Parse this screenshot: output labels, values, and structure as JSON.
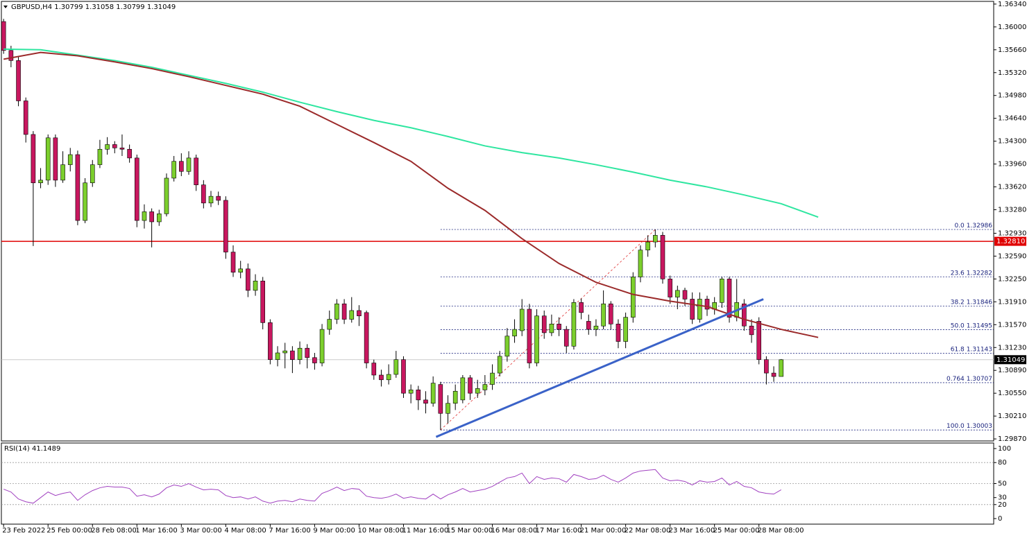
{
  "chart_data": [
    {
      "type": "candlestick",
      "title": "GBPUSD,H4  1.30799 1.31058 1.30799 1.31049",
      "open": [
        1.3608,
        1.3565,
        1.355,
        1.349,
        1.344,
        1.3368,
        1.3372,
        1.3435,
        1.3372,
        1.3395,
        1.341,
        1.3312,
        1.3368,
        1.3395,
        1.3418,
        1.3425,
        1.342,
        1.3418,
        1.3405,
        1.3312,
        1.3325,
        1.331,
        1.3322,
        1.3375,
        1.34,
        1.3385,
        1.3405,
        1.3365,
        1.3338,
        1.3348,
        1.3342,
        1.3265,
        1.3235,
        1.324,
        1.3208,
        1.3222,
        1.316,
        1.3105,
        1.3115,
        1.3118,
        1.3105,
        1.3122,
        1.3108,
        1.31,
        1.315,
        1.3165,
        1.3188,
        1.3165,
        1.3178,
        1.3175,
        1.31,
        1.3082,
        1.3075,
        1.3083,
        1.3105,
        1.3055,
        1.306,
        1.3045,
        1.304,
        1.3068,
        1.3025,
        1.304,
        1.3045,
        1.3078,
        1.3055,
        1.306,
        1.3068,
        1.3085,
        1.311,
        1.314,
        1.3148,
        1.318,
        1.31,
        1.317,
        1.3145,
        1.3158,
        1.315,
        1.3125,
        1.319,
        1.3162,
        1.315,
        1.3155,
        1.3188,
        1.3158,
        1.3132,
        1.3168,
        1.3228,
        1.3268,
        1.328,
        1.329,
        1.3225,
        1.3198,
        1.3208,
        1.3195,
        1.3165,
        1.3195,
        1.318,
        1.319,
        1.3225,
        1.3168,
        1.3188,
        1.3155,
        1.3162,
        1.3105,
        1.3085,
        1.30799
      ],
      "high": [
        1.3612,
        1.3572,
        1.3556,
        1.3495,
        1.3445,
        1.339,
        1.344,
        1.344,
        1.3415,
        1.342,
        1.3416,
        1.3375,
        1.3402,
        1.3432,
        1.3436,
        1.343,
        1.344,
        1.3425,
        1.341,
        1.3336,
        1.333,
        1.3328,
        1.3382,
        1.3408,
        1.3412,
        1.3415,
        1.341,
        1.3372,
        1.3356,
        1.3355,
        1.3348,
        1.3275,
        1.3252,
        1.3248,
        1.3232,
        1.3228,
        1.3165,
        1.3125,
        1.313,
        1.3125,
        1.3132,
        1.3128,
        1.3115,
        1.3158,
        1.3178,
        1.3195,
        1.3195,
        1.3198,
        1.3186,
        1.3178,
        1.3105,
        1.309,
        1.3098,
        1.3118,
        1.311,
        1.3068,
        1.3066,
        1.3058,
        1.308,
        1.3072,
        1.3052,
        1.3068,
        1.3082,
        1.3082,
        1.3075,
        1.3082,
        1.3098,
        1.3118,
        1.3152,
        1.3165,
        1.3195,
        1.3188,
        1.318,
        1.3178,
        1.3172,
        1.3168,
        1.3155,
        1.3195,
        1.3196,
        1.3172,
        1.3165,
        1.3208,
        1.3192,
        1.3165,
        1.3175,
        1.3235,
        1.3275,
        1.329,
        1.32986,
        1.3295,
        1.323,
        1.3215,
        1.3212,
        1.3205,
        1.3205,
        1.32,
        1.3198,
        1.3228,
        1.3228,
        1.3225,
        1.3195,
        1.3165,
        1.3168,
        1.311,
        1.3095,
        1.31058
      ],
      "low": [
        1.356,
        1.354,
        1.3482,
        1.3428,
        1.3274,
        1.336,
        1.3365,
        1.3362,
        1.3368,
        1.3385,
        1.3305,
        1.3308,
        1.3362,
        1.339,
        1.341,
        1.3412,
        1.3408,
        1.3398,
        1.3302,
        1.33,
        1.3272,
        1.3304,
        1.3318,
        1.337,
        1.3378,
        1.338,
        1.3356,
        1.333,
        1.3332,
        1.3335,
        1.3255,
        1.3228,
        1.3226,
        1.3198,
        1.32,
        1.315,
        1.3098,
        1.3095,
        1.3092,
        1.3085,
        1.3098,
        1.3092,
        1.309,
        1.3095,
        1.3142,
        1.3158,
        1.3158,
        1.316,
        1.3155,
        1.3092,
        1.3075,
        1.3065,
        1.3068,
        1.3078,
        1.3048,
        1.304,
        1.303,
        1.3025,
        1.3035,
        1.30003,
        1.301,
        1.303,
        1.304,
        1.3045,
        1.3048,
        1.3052,
        1.306,
        1.308,
        1.3102,
        1.313,
        1.314,
        1.3092,
        1.3095,
        1.3136,
        1.314,
        1.314,
        1.3115,
        1.312,
        1.3165,
        1.3142,
        1.314,
        1.315,
        1.315,
        1.3122,
        1.3122,
        1.316,
        1.322,
        1.3258,
        1.3272,
        1.3218,
        1.3188,
        1.318,
        1.3185,
        1.3158,
        1.316,
        1.317,
        1.3172,
        1.3182,
        1.316,
        1.3162,
        1.3148,
        1.313,
        1.3098,
        1.3068,
        1.3072,
        1.30799
      ],
      "close": [
        1.3565,
        1.355,
        1.349,
        1.344,
        1.3368,
        1.3372,
        1.3435,
        1.3372,
        1.3395,
        1.341,
        1.3312,
        1.3368,
        1.3395,
        1.3418,
        1.3425,
        1.342,
        1.3418,
        1.3405,
        1.3312,
        1.3325,
        1.331,
        1.3322,
        1.3375,
        1.34,
        1.3385,
        1.3405,
        1.3365,
        1.3338,
        1.3348,
        1.3342,
        1.3265,
        1.3235,
        1.324,
        1.3208,
        1.3222,
        1.316,
        1.3105,
        1.3115,
        1.3118,
        1.3105,
        1.3122,
        1.3108,
        1.31,
        1.315,
        1.3165,
        1.3188,
        1.3165,
        1.3178,
        1.317,
        1.31,
        1.3082,
        1.3075,
        1.3083,
        1.3105,
        1.3055,
        1.306,
        1.3045,
        1.304,
        1.307,
        1.3025,
        1.304,
        1.3058,
        1.3078,
        1.3055,
        1.3062,
        1.3068,
        1.3085,
        1.311,
        1.314,
        1.315,
        1.318,
        1.31,
        1.317,
        1.3145,
        1.3158,
        1.315,
        1.3125,
        1.319,
        1.3175,
        1.315,
        1.3155,
        1.3188,
        1.3158,
        1.3132,
        1.3168,
        1.3228,
        1.3268,
        1.328,
        1.329,
        1.3225,
        1.3198,
        1.3208,
        1.3195,
        1.3165,
        1.3195,
        1.318,
        1.319,
        1.3225,
        1.3168,
        1.319,
        1.3155,
        1.3142,
        1.3105,
        1.3085,
        1.30799,
        1.31049
      ],
      "up_color": "#7ccf2d",
      "down_color": "#c8175f",
      "xlim": [
        -0.3,
        133.7
      ],
      "ylim": [
        1.2984,
        1.3638
      ],
      "xticks": [
        {
          "value": 0,
          "label": "23 Feb 2022"
        },
        {
          "value": 6,
          "label": "25 Feb 00:00"
        },
        {
          "value": 12,
          "label": "28 Feb 08:00"
        },
        {
          "value": 18,
          "label": "1 Mar 16:00"
        },
        {
          "value": 24,
          "label": "3 Mar 00:00"
        },
        {
          "value": 30,
          "label": "4 Mar 08:00"
        },
        {
          "value": 36,
          "label": "7 Mar 16:00"
        },
        {
          "value": 42,
          "label": "9 Mar 00:00"
        },
        {
          "value": 48,
          "label": "10 Mar 08:00"
        },
        {
          "value": 54,
          "label": "11 Mar 16:00"
        },
        {
          "value": 60,
          "label": "15 Mar 00:00"
        },
        {
          "value": 66,
          "label": "16 Mar 08:00"
        },
        {
          "value": 72,
          "label": "17 Mar 16:00"
        },
        {
          "value": 78,
          "label": "21 Mar 00:00"
        },
        {
          "value": 84,
          "label": "22 Mar 08:00"
        },
        {
          "value": 90,
          "label": "23 Mar 16:00"
        },
        {
          "value": 96,
          "label": "25 Mar 00:00"
        },
        {
          "value": 102,
          "label": "28 Mar 08:00"
        }
      ],
      "yticks": [
        {
          "value": 1.3634,
          "label": "1.36340"
        },
        {
          "value": 1.36,
          "label": "1.36000"
        },
        {
          "value": 1.3566,
          "label": "1.35660"
        },
        {
          "value": 1.3532,
          "label": "1.35320"
        },
        {
          "value": 1.3498,
          "label": "1.34980"
        },
        {
          "value": 1.3464,
          "label": "1.34640"
        },
        {
          "value": 1.343,
          "label": "1.34300"
        },
        {
          "value": 1.3396,
          "label": "1.33960"
        },
        {
          "value": 1.3362,
          "label": "1.33620"
        },
        {
          "value": 1.3328,
          "label": "1.33280"
        },
        {
          "value": 1.3293,
          "label": "1.32930"
        },
        {
          "value": 1.3259,
          "label": "1.32590"
        },
        {
          "value": 1.3225,
          "label": "1.32250"
        },
        {
          "value": 1.3191,
          "label": "1.31910"
        },
        {
          "value": 1.3157,
          "label": "1.31570"
        },
        {
          "value": 1.3123,
          "label": "1.31230"
        },
        {
          "value": 1.3089,
          "label": "1.30890"
        },
        {
          "value": 1.3055,
          "label": "1.30550"
        },
        {
          "value": 1.3021,
          "label": "1.30210"
        },
        {
          "value": 1.2987,
          "label": "1.29870"
        }
      ],
      "moving_averages": [
        {
          "color": "#2ee6a0",
          "x": [
            0,
            5,
            10,
            15,
            20,
            25,
            30,
            35,
            40,
            45,
            50,
            55,
            60,
            65,
            70,
            75,
            80,
            85,
            90,
            95,
            100,
            105,
            110
          ],
          "values": [
            1.3567,
            1.3566,
            1.3558,
            1.355,
            1.354,
            1.3528,
            1.3516,
            1.3503,
            1.3488,
            1.3474,
            1.3461,
            1.345,
            1.3437,
            1.3423,
            1.3413,
            1.3405,
            1.3395,
            1.3384,
            1.3372,
            1.3362,
            1.335,
            1.3337,
            1.3317
          ]
        },
        {
          "color": "#9b2a2a",
          "x": [
            0,
            5,
            10,
            15,
            20,
            25,
            30,
            35,
            40,
            45,
            50,
            55,
            60,
            65,
            70,
            75,
            80,
            85,
            90,
            95,
            100,
            105,
            110
          ],
          "values": [
            1.3552,
            1.3562,
            1.3557,
            1.3548,
            1.3538,
            1.3526,
            1.3513,
            1.35,
            1.3482,
            1.3455,
            1.3428,
            1.34,
            1.336,
            1.3327,
            1.3285,
            1.3248,
            1.322,
            1.3202,
            1.3192,
            1.3184,
            1.3165,
            1.315,
            1.3138
          ]
        }
      ],
      "trendline": {
        "color": "#3a62c8",
        "x": [
          58.4,
          102.6
        ],
        "values": [
          1.299,
          1.3195
        ]
      },
      "fib_anchor": {
        "color": "#e03030",
        "x": [
          59,
          88
        ],
        "values": [
          1.30003,
          1.32986
        ]
      },
      "fib_color": "#1a237e",
      "fib_levels": [
        {
          "ratio": "0.0",
          "price": 1.32986
        },
        {
          "ratio": "23.6",
          "price": 1.32282
        },
        {
          "ratio": "38.2",
          "price": 1.31846
        },
        {
          "ratio": "50.0",
          "price": 1.31495
        },
        {
          "ratio": "61.8",
          "price": 1.31143
        },
        {
          "ratio": "0.764",
          "price": 1.30707
        },
        {
          "ratio": "100.0",
          "price": 1.30003
        }
      ],
      "level_line": {
        "value": 1.3281,
        "label": "1.32810",
        "color": "#e00000"
      },
      "price_line": 1.31049
    },
    {
      "type": "line",
      "title": "RSI(14) 41.1489",
      "values": [
        42,
        38,
        28,
        24,
        22,
        30,
        38,
        33,
        36,
        38,
        26,
        34,
        40,
        44,
        46,
        45,
        45,
        43,
        32,
        34,
        31,
        35,
        44,
        48,
        46,
        50,
        45,
        41,
        42,
        41,
        33,
        30,
        31,
        28,
        31,
        25,
        22,
        25,
        26,
        24,
        28,
        26,
        25,
        36,
        40,
        45,
        40,
        43,
        42,
        32,
        30,
        29,
        31,
        35,
        29,
        31,
        29,
        28,
        35,
        28,
        34,
        38,
        43,
        38,
        40,
        42,
        46,
        52,
        58,
        60,
        65,
        50,
        60,
        56,
        58,
        57,
        52,
        63,
        60,
        56,
        57,
        62,
        56,
        52,
        58,
        65,
        68,
        69,
        70,
        58,
        54,
        55,
        53,
        48,
        54,
        52,
        53,
        58,
        48,
        53,
        46,
        44,
        38,
        36,
        35,
        41.1489
      ],
      "color": "#a040c0",
      "ylim": [
        0,
        100
      ],
      "yticks": [
        100,
        80,
        50,
        30,
        20,
        0
      ],
      "levels": [
        80,
        50,
        20
      ]
    }
  ]
}
